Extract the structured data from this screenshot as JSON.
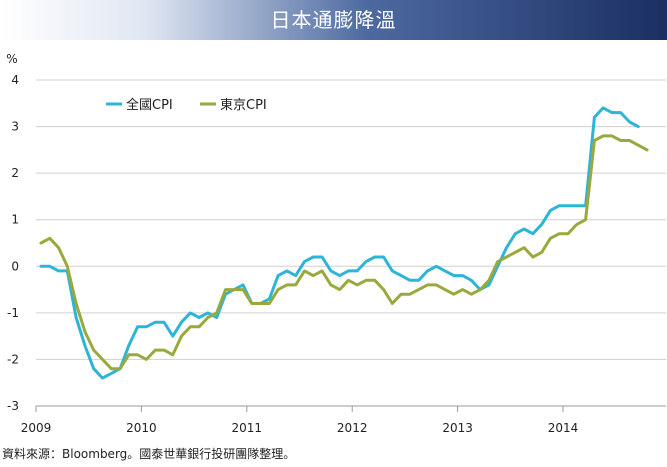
{
  "header": {
    "title": "日本通膨降溫"
  },
  "source_note": "資料來源：Bloomberg。國泰世華銀行投研團隊整理。",
  "chart_data": {
    "type": "line",
    "title": "日本通膨降溫",
    "ylabel": "%",
    "xlabel": "",
    "ylim": [
      -3,
      4
    ],
    "xlim": [
      "2009-01",
      "2014-12"
    ],
    "x_ticks": [
      "2009",
      "2010",
      "2011",
      "2012",
      "2013",
      "2014"
    ],
    "y_ticks": [
      "4",
      "3",
      "2",
      "1",
      "0",
      "-1",
      "-2",
      "-3"
    ],
    "legend_position": "top-left",
    "grid": "horizontal",
    "series": [
      {
        "name": "全國CPI",
        "color": "#2cb5d6",
        "start": "2009-01",
        "values": [
          0.0,
          0.0,
          -0.1,
          -0.1,
          -1.1,
          -1.7,
          -2.2,
          -2.4,
          -2.3,
          -2.2,
          -1.7,
          -1.3,
          -1.3,
          -1.2,
          -1.2,
          -1.5,
          -1.2,
          -1.0,
          -1.1,
          -1.0,
          -1.1,
          -0.6,
          -0.5,
          -0.4,
          -0.8,
          -0.8,
          -0.7,
          -0.2,
          -0.1,
          -0.2,
          0.1,
          0.2,
          0.2,
          -0.1,
          -0.2,
          -0.1,
          -0.1,
          0.1,
          0.2,
          0.2,
          -0.1,
          -0.2,
          -0.3,
          -0.3,
          -0.1,
          0.0,
          -0.1,
          -0.2,
          -0.2,
          -0.3,
          -0.5,
          -0.4,
          0.0,
          0.4,
          0.7,
          0.8,
          0.7,
          0.9,
          1.2,
          1.3,
          1.3,
          1.3,
          1.3,
          3.2,
          3.4,
          3.3,
          3.3,
          3.1,
          3.0
        ]
      },
      {
        "name": "東京CPI",
        "color": "#9aa93d",
        "start": "2009-01",
        "values": [
          0.5,
          0.6,
          0.4,
          0.0,
          -0.8,
          -1.4,
          -1.8,
          -2.0,
          -2.2,
          -2.2,
          -1.9,
          -1.9,
          -2.0,
          -1.8,
          -1.8,
          -1.9,
          -1.5,
          -1.3,
          -1.3,
          -1.1,
          -1.0,
          -0.5,
          -0.5,
          -0.5,
          -0.8,
          -0.8,
          -0.8,
          -0.5,
          -0.4,
          -0.4,
          -0.1,
          -0.2,
          -0.1,
          -0.4,
          -0.5,
          -0.3,
          -0.4,
          -0.3,
          -0.3,
          -0.5,
          -0.8,
          -0.6,
          -0.6,
          -0.5,
          -0.4,
          -0.4,
          -0.5,
          -0.6,
          -0.5,
          -0.6,
          -0.5,
          -0.3,
          0.1,
          0.2,
          0.3,
          0.4,
          0.2,
          0.3,
          0.6,
          0.7,
          0.7,
          0.9,
          1.0,
          2.7,
          2.8,
          2.8,
          2.7,
          2.7,
          2.6,
          2.5
        ]
      }
    ]
  }
}
